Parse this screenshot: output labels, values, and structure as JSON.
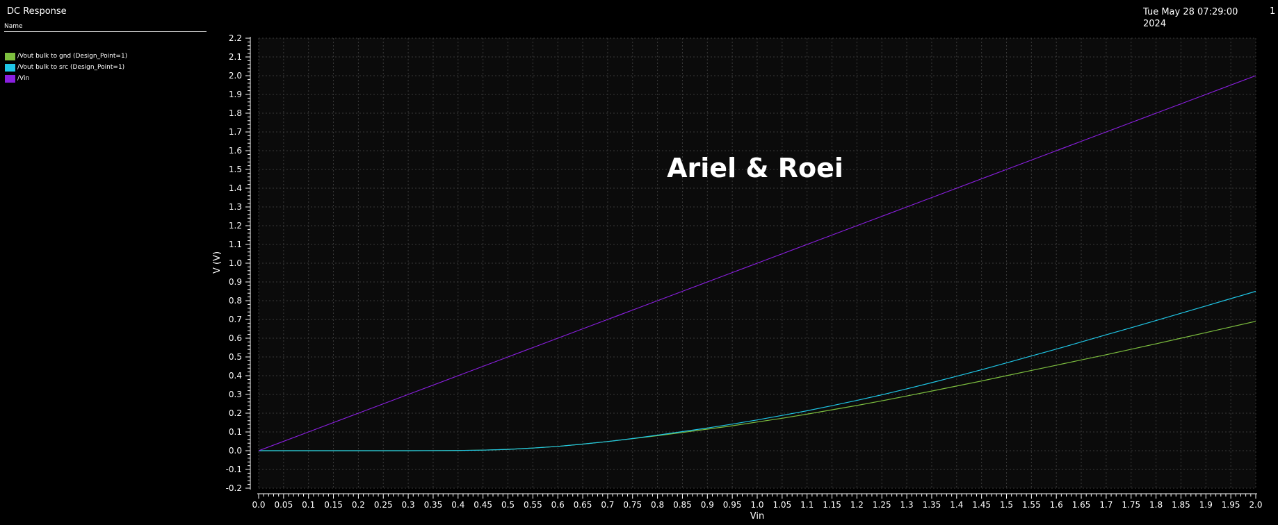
{
  "window": {
    "title": "DC Response",
    "date": "Tue May 28 07:29:00 2024",
    "corner_label": "1"
  },
  "legend": {
    "header": "Name"
  },
  "chart_data": {
    "type": "line",
    "title": "",
    "annotation": "Ariel & Roei",
    "xlabel": "Vin",
    "ylabel": "V (V)",
    "xlim": [
      0.0,
      2.0
    ],
    "ylim": [
      -0.2,
      2.2
    ],
    "x_ticks": [
      "0.0",
      "0.05",
      "0.1",
      "0.15",
      "0.2",
      "0.25",
      "0.3",
      "0.35",
      "0.4",
      "0.45",
      "0.5",
      "0.55",
      "0.6",
      "0.65",
      "0.7",
      "0.75",
      "0.8",
      "0.85",
      "0.9",
      "0.95",
      "1.0",
      "1.05",
      "1.1",
      "1.15",
      "1.2",
      "1.25",
      "1.3",
      "1.35",
      "1.4",
      "1.45",
      "1.5",
      "1.55",
      "1.6",
      "1.65",
      "1.7",
      "1.75",
      "1.8",
      "1.85",
      "1.9",
      "1.95",
      "2.0"
    ],
    "y_ticks": [
      "-0.2",
      "-0.1",
      "0.0",
      "0.1",
      "0.2",
      "0.3",
      "0.4",
      "0.5",
      "0.6",
      "0.7",
      "0.8",
      "0.9",
      "1.0",
      "1.1",
      "1.2",
      "1.3",
      "1.4",
      "1.5",
      "1.6",
      "1.7",
      "1.8",
      "1.9",
      "2.0",
      "2.1",
      "2.2"
    ],
    "grid": true,
    "legend_position": "top-left",
    "x": [
      0.0,
      0.1,
      0.2,
      0.3,
      0.4,
      0.45,
      0.5,
      0.55,
      0.6,
      0.65,
      0.7,
      0.75,
      0.8,
      0.85,
      0.9,
      0.95,
      1.0,
      1.05,
      1.1,
      1.15,
      1.2,
      1.25,
      1.3,
      1.35,
      1.4,
      1.45,
      1.5,
      1.55,
      1.6,
      1.65,
      1.7,
      1.75,
      1.8,
      1.85,
      1.9,
      1.95,
      2.0
    ],
    "series": [
      {
        "name": "/Vout bulk to gnd (Design_Point=1)",
        "color": "#7dbf3f",
        "values": [
          0.0,
          0.0,
          0.0,
          0.0,
          0.001,
          0.003,
          0.007,
          0.014,
          0.023,
          0.035,
          0.049,
          0.064,
          0.08,
          0.097,
          0.115,
          0.133,
          0.153,
          0.173,
          0.195,
          0.218,
          0.241,
          0.266,
          0.292,
          0.318,
          0.345,
          0.372,
          0.4,
          0.428,
          0.456,
          0.484,
          0.512,
          0.541,
          0.57,
          0.6,
          0.63,
          0.66,
          0.69
        ]
      },
      {
        "name": "/Vout bulk to src (Design_Point=1)",
        "color": "#1fc6e6",
        "values": [
          0.0,
          0.0,
          0.0,
          0.0,
          0.001,
          0.003,
          0.007,
          0.014,
          0.023,
          0.035,
          0.049,
          0.065,
          0.083,
          0.102,
          0.121,
          0.142,
          0.164,
          0.188,
          0.213,
          0.24,
          0.268,
          0.298,
          0.33,
          0.363,
          0.397,
          0.432,
          0.468,
          0.505,
          0.542,
          0.58,
          0.618,
          0.656,
          0.694,
          0.733,
          0.772,
          0.811,
          0.85
        ]
      },
      {
        "name": "/Vin",
        "color": "#8a1fe0",
        "values": [
          0.0,
          0.1,
          0.2,
          0.3,
          0.4,
          0.45,
          0.5,
          0.55,
          0.6,
          0.65,
          0.7,
          0.75,
          0.8,
          0.85,
          0.9,
          0.95,
          1.0,
          1.05,
          1.1,
          1.15,
          1.2,
          1.25,
          1.3,
          1.35,
          1.4,
          1.45,
          1.5,
          1.55,
          1.6,
          1.65,
          1.7,
          1.75,
          1.8,
          1.85,
          1.9,
          1.95,
          2.0
        ]
      }
    ]
  }
}
